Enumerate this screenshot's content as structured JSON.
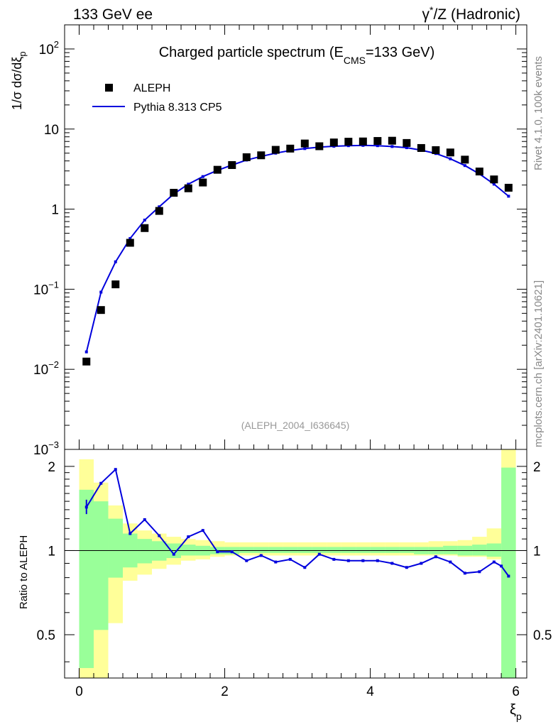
{
  "header": {
    "left": "133 GeV ee",
    "right_prefix": "γ",
    "right_sup": "*",
    "right_rest": "/Z (Hadronic)"
  },
  "side": {
    "rivet": "Rivet 4.1.0,  100k events",
    "mcplots": "mcplots.cern.ch [arXiv:2401.10621]"
  },
  "chart_data": {
    "type": "scatter",
    "title_main": "Charged particle spectrum (E",
    "title_sub": "CMS",
    "title_tail": "=133 GeV)",
    "analysis_id": "(ALEPH_2004_I636645)",
    "ylabel_parts": {
      "pre": "1/σ   dσ/dξ",
      "sub": "p"
    },
    "xlabel": "ξ",
    "xlabel_sub": "p",
    "ratio_ylabel": "Ratio to ALEPH",
    "xlim": [
      -0.2,
      6.15
    ],
    "ylim": [
      0.001,
      200
    ],
    "ratio_ylim": [
      0.35,
      2.3
    ],
    "x_ticks": [
      "0",
      "2",
      "4",
      "6"
    ],
    "y_ticks": [
      {
        "base": "10",
        "exp": "2",
        "v": 100
      },
      {
        "base": "10",
        "exp": "",
        "v": 10
      },
      {
        "base": "1",
        "exp": "",
        "v": 1
      },
      {
        "base": "10",
        "exp": "−1",
        "v": 0.1
      },
      {
        "base": "10",
        "exp": "−2",
        "v": 0.01
      },
      {
        "base": "10",
        "exp": "−3",
        "v": 0.001
      }
    ],
    "ratio_ticks_left": [
      "2",
      "1",
      "0.5"
    ],
    "ratio_ticks_right": [
      "2",
      "1",
      "0.5"
    ],
    "legend": [
      {
        "name": "ALEPH",
        "kind": "marker"
      },
      {
        "name": "Pythia 8.313 CP5",
        "kind": "line"
      }
    ],
    "colors": {
      "data": "#000000",
      "mc": "#0000dd",
      "band_inner": "#99ff99",
      "band_outer": "#ffff99"
    },
    "x": [
      0.1,
      0.3,
      0.5,
      0.7,
      0.9,
      1.1,
      1.3,
      1.5,
      1.7,
      1.9,
      2.1,
      2.3,
      2.5,
      2.7,
      2.9,
      3.1,
      3.3,
      3.5,
      3.7,
      3.9,
      4.1,
      4.3,
      4.5,
      4.7,
      4.9,
      5.1,
      5.3,
      5.5,
      5.7,
      5.9
    ],
    "series": [
      {
        "name": "ALEPH",
        "values": [
          0.0125,
          0.055,
          0.115,
          0.38,
          0.58,
          0.95,
          1.6,
          1.82,
          2.15,
          3.1,
          3.55,
          4.45,
          4.7,
          5.5,
          5.7,
          6.6,
          6.1,
          6.8,
          6.95,
          7.0,
          7.1,
          7.15,
          6.7,
          5.8,
          5.45,
          5.1,
          4.15,
          2.95,
          2.35,
          1.85
        ]
      },
      {
        "name": "Pythia 8.313 CP5",
        "values": [
          0.0165,
          0.092,
          0.22,
          0.43,
          0.73,
          1.07,
          1.55,
          2.05,
          2.55,
          3.05,
          3.55,
          4.1,
          4.55,
          5.0,
          5.4,
          5.7,
          5.95,
          6.1,
          6.2,
          6.25,
          6.2,
          6.05,
          5.85,
          5.45,
          4.95,
          4.25,
          3.5,
          2.75,
          2.05,
          1.45
        ]
      }
    ],
    "ratio": [
      1.43,
      1.74,
      1.95,
      1.15,
      1.29,
      1.13,
      0.97,
      1.12,
      1.18,
      0.99,
      0.99,
      0.92,
      0.96,
      0.91,
      0.93,
      0.87,
      0.97,
      0.93,
      0.92,
      0.92,
      0.92,
      0.9,
      0.87,
      0.9,
      0.95,
      0.91,
      0.83,
      0.84,
      0.91,
      0.88,
      0.81
    ],
    "ratio_x": [
      0.1,
      0.3,
      0.5,
      0.7,
      0.9,
      1.1,
      1.3,
      1.5,
      1.7,
      1.9,
      2.1,
      2.3,
      2.5,
      2.7,
      2.9,
      3.1,
      3.3,
      3.5,
      3.7,
      3.9,
      4.1,
      4.3,
      4.5,
      4.7,
      4.9,
      5.1,
      5.3,
      5.5,
      5.7,
      5.8,
      5.9
    ],
    "band_edges": [
      0.0,
      0.2,
      0.4,
      0.6,
      0.8,
      1.0,
      1.2,
      1.4,
      1.6,
      1.8,
      2.0,
      2.2,
      2.4,
      2.6,
      2.8,
      3.0,
      3.2,
      3.4,
      3.6,
      3.8,
      4.0,
      4.2,
      4.4,
      4.6,
      4.8,
      5.0,
      5.2,
      5.4,
      5.6,
      5.8,
      6.0
    ],
    "band_outer_lo": [
      0.35,
      0.35,
      0.55,
      0.78,
      0.82,
      0.86,
      0.89,
      0.92,
      0.93,
      0.95,
      0.96,
      0.96,
      0.96,
      0.96,
      0.96,
      0.96,
      0.96,
      0.96,
      0.96,
      0.96,
      0.96,
      0.96,
      0.96,
      0.96,
      0.96,
      0.96,
      0.95,
      0.95,
      0.93,
      0.35
    ],
    "band_outer_hi": [
      2.12,
      1.75,
      1.45,
      1.25,
      1.18,
      1.15,
      1.12,
      1.1,
      1.09,
      1.08,
      1.07,
      1.07,
      1.07,
      1.07,
      1.07,
      1.07,
      1.07,
      1.07,
      1.07,
      1.07,
      1.07,
      1.07,
      1.07,
      1.07,
      1.08,
      1.08,
      1.09,
      1.12,
      1.2,
      2.3
    ],
    "band_inner_lo": [
      0.38,
      0.52,
      0.8,
      0.87,
      0.9,
      0.92,
      0.94,
      0.96,
      0.96,
      0.97,
      0.97,
      0.98,
      0.98,
      0.98,
      0.98,
      0.98,
      0.98,
      0.98,
      0.98,
      0.98,
      0.98,
      0.98,
      0.98,
      0.97,
      0.97,
      0.97,
      0.96,
      0.96,
      0.95,
      0.35
    ],
    "band_inner_hi": [
      1.65,
      1.5,
      1.3,
      1.15,
      1.1,
      1.08,
      1.06,
      1.05,
      1.04,
      1.03,
      1.03,
      1.03,
      1.03,
      1.03,
      1.03,
      1.03,
      1.03,
      1.03,
      1.03,
      1.03,
      1.03,
      1.03,
      1.03,
      1.03,
      1.03,
      1.04,
      1.04,
      1.05,
      1.06,
      1.98
    ]
  }
}
